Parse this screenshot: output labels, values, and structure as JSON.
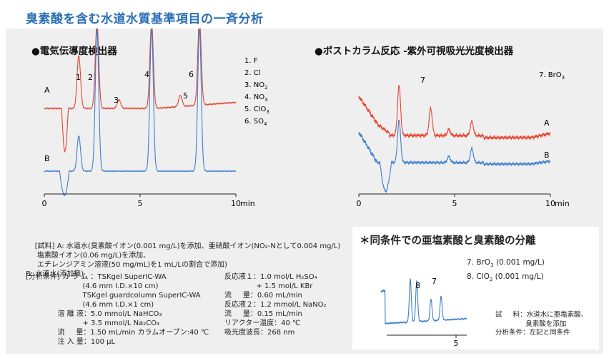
{
  "page": {
    "title": "臭素酸を含む水道水質基準項目の一斉分析"
  },
  "chart_data": [
    {
      "type": "line",
      "title": "●電気伝導度検出器",
      "x_ticks": [
        "0",
        "5",
        "10"
      ],
      "x_unit": "min",
      "xlim": [
        0,
        10
      ],
      "series": [
        {
          "name": "A",
          "color": "#e8432e"
        },
        {
          "name": "B",
          "color": "#3d7fcf"
        }
      ],
      "peak_labels": [
        "1",
        "2",
        "3",
        "4",
        "5",
        "6"
      ],
      "peaks_A": [
        [
          1.8,
          0.62
        ],
        [
          2.75,
          1.0
        ],
        [
          3.9,
          0.1
        ],
        [
          5.6,
          1.0
        ],
        [
          7.1,
          0.13
        ],
        [
          8.1,
          1.0
        ]
      ],
      "peaks_B": [
        [
          1.8,
          0.25
        ],
        [
          2.75,
          1.0
        ],
        [
          5.6,
          1.0
        ],
        [
          8.1,
          1.0
        ]
      ],
      "legend": [
        "1. F",
        "2. Cl",
        "3. NO",
        "4. NO",
        "5. ClO",
        "6. SO"
      ],
      "legend_sub": [
        "",
        "",
        "2",
        "3",
        "3",
        "4"
      ]
    },
    {
      "type": "line",
      "title": "●ポストカラム反応 -紫外可視吸光光度検出器",
      "x_ticks": [
        "0",
        "5",
        "10"
      ],
      "x_unit": "min",
      "xlim": [
        0,
        10
      ],
      "series": [
        {
          "name": "A",
          "color": "#e8432e"
        },
        {
          "name": "B",
          "color": "#3d7fcf"
        }
      ],
      "peak_labels": [
        "7"
      ],
      "peaks_A": [
        [
          2.1,
          1.0
        ],
        [
          3.75,
          0.55
        ],
        [
          4.7,
          0.12
        ],
        [
          5.9,
          0.28
        ]
      ],
      "peaks_B": [
        [
          2.1,
          0.85
        ],
        [
          4.7,
          0.12
        ],
        [
          5.9,
          0.28
        ]
      ],
      "legend": [
        "7. BrO"
      ],
      "legend_sub": [
        "3"
      ]
    },
    {
      "type": "line",
      "title": "＊同条件での亜塩素酸と臭素酸の分離",
      "x_ticks": [
        "5"
      ],
      "series": [
        {
          "name": "",
          "color": "#3d7fcf"
        }
      ],
      "peak_labels": [
        "8",
        "7"
      ],
      "peaks": [
        [
          2.05,
          1.0
        ],
        [
          2.5,
          0.95
        ],
        [
          3.5,
          0.5
        ],
        [
          4.2,
          0.55
        ]
      ],
      "legend": [
        "7. BrO (0.001 mg/L)",
        "8. ClO (0.001 mg/L)"
      ],
      "legend_sub": [
        "3",
        "2"
      ]
    }
  ],
  "sample": {
    "label": "[試料]",
    "lines": [
      "A: 水道水(臭素酸イオン(0.001 mg/L)を添加、亜硝酸イオン(NO₂-Nとして0.004 mg/L)",
      "     塩素酸イオン(0.06 mg/L)を添加、",
      "     エチレンジアミン溶液(50 mg/mL)を1 mL/Lの割合で添加)",
      "B: 水道水(添加無)"
    ]
  },
  "conditions_left": [
    "[分析条件] カ ラ ム ：TSKgel SuperIC-WA",
    "                         (4.6 mm I.D.×10 cm)",
    "                         TSKgel guardcolumn SuperIC-WA",
    "                         (4.6 mm I.D.×1 cm)",
    "              溶 離 液：5.0 mmol/L NaHCO₃",
    "                         + 3.5 mmol/L Na₂CO₃",
    "              流     量：1.50 mL/min カラムオーブン:40 ℃",
    "              注 入 量：100 μL"
  ],
  "conditions_right": [
    "反応液１：1.0 mol/L H₂SO₄",
    "              + 1.5 mol/L KBr",
    "流     量：0.60 mL/min",
    "反応液２：1.2 mmol/L NaNO₂",
    "流     量：0.15 mL/min",
    "リアクター温度：40 ℃",
    "吸光度波長：268 nm"
  ],
  "inset_note": [
    "試     料：水道水に亜塩素酸、",
    "              臭素酸を添加",
    "分析条件：左記と同条件"
  ]
}
